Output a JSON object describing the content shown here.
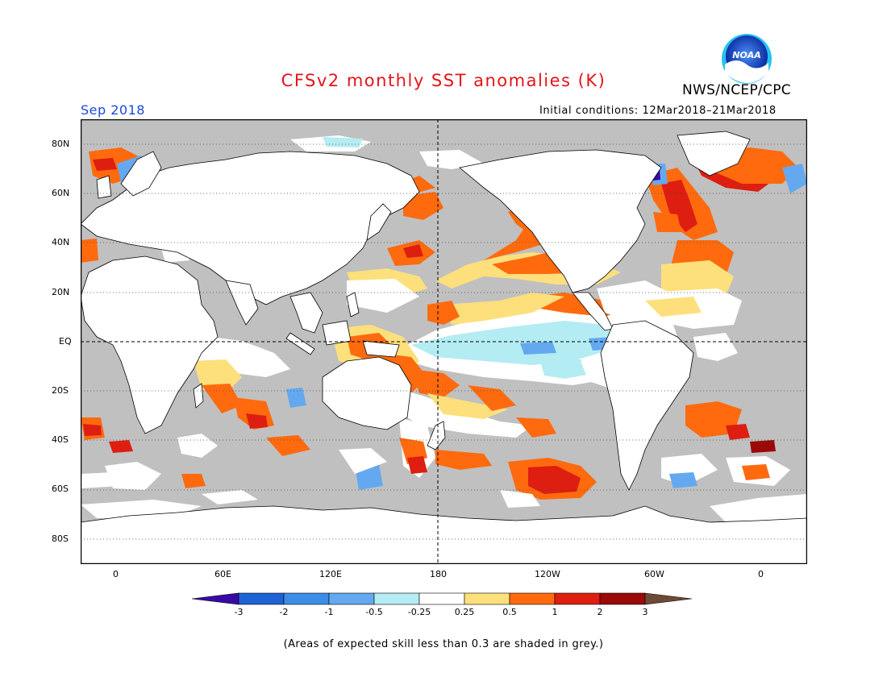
{
  "header": {
    "title": "CFSv2 monthly SST anomalies (K)",
    "agency": "NWS/NCEP/CPC",
    "logo_text": "NOAA",
    "month": "Sep 2018",
    "initial_conditions": "Initial conditions: 12Mar2018–21Mar2018"
  },
  "map": {
    "latitude_labels": [
      "80N",
      "60N",
      "40N",
      "20N",
      "EQ",
      "20S",
      "40S",
      "60S",
      "80S"
    ],
    "longitude_labels": [
      "0",
      "60E",
      "120E",
      "180",
      "120W",
      "60W",
      "0"
    ],
    "lon_range": [
      -20,
      385
    ],
    "lat_range": [
      -90,
      90
    ],
    "projection": "cylindrical equidistant, Pacific-centered",
    "grid": "dotted every 20° latitude, dashed equator and 180° meridian",
    "land_color": "#ffffff",
    "low_skill_color": "#c0c0c0"
  },
  "colorbar": {
    "tick_labels": [
      "-3",
      "-2",
      "-1",
      "-0.5",
      "-0.25",
      "0.25",
      "0.5",
      "1",
      "2",
      "3"
    ],
    "colors": [
      "#3a0aa8",
      "#1f62d4",
      "#3c8de8",
      "#64a9f0",
      "#b4ecf3",
      "#ffffff",
      "#fde07c",
      "#ff6a0e",
      "#dd1e10",
      "#9a0a08",
      "#6e4a36"
    ]
  },
  "footnote": "(Areas of expected skill less than 0.3 are shaded in grey.)"
}
